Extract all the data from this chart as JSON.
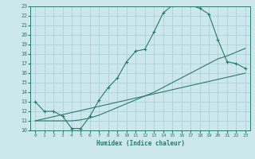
{
  "xlabel": "Humidex (Indice chaleur)",
  "bg_color": "#cce8ec",
  "grid_color": "#aaccd4",
  "line_color": "#2a7a6a",
  "spine_color": "#2a7a6a",
  "xlim": [
    -0.5,
    23.5
  ],
  "ylim": [
    10,
    23
  ],
  "xticks": [
    0,
    1,
    2,
    3,
    4,
    5,
    6,
    7,
    8,
    9,
    10,
    11,
    12,
    13,
    14,
    15,
    16,
    17,
    18,
    19,
    20,
    21,
    22,
    23
  ],
  "yticks": [
    10,
    11,
    12,
    13,
    14,
    15,
    16,
    17,
    18,
    19,
    20,
    21,
    22,
    23
  ],
  "curve1_x": [
    0,
    1,
    2,
    3,
    4,
    5,
    6,
    7,
    8,
    9,
    10,
    11,
    12,
    13,
    14,
    15,
    16,
    17,
    18,
    19,
    20,
    21,
    22,
    23
  ],
  "curve1_y": [
    13,
    12,
    12,
    11.5,
    10.2,
    10.2,
    11.5,
    13.2,
    14.5,
    15.5,
    17.2,
    18.3,
    18.5,
    20.3,
    22.3,
    23.1,
    23.2,
    23.1,
    22.8,
    22.2,
    19.5,
    17.2,
    17.0,
    16.5
  ],
  "curve2_x": [
    0,
    1,
    2,
    3,
    4,
    5,
    6,
    7,
    8,
    9,
    10,
    11,
    12,
    13,
    14,
    15,
    16,
    17,
    18,
    19,
    20,
    21,
    22,
    23
  ],
  "curve2_y": [
    11.0,
    11.0,
    11.0,
    11.0,
    11.0,
    11.1,
    11.3,
    11.6,
    12.0,
    12.4,
    12.8,
    13.2,
    13.6,
    14.0,
    14.5,
    15.0,
    15.5,
    16.0,
    16.5,
    17.0,
    17.5,
    17.8,
    18.2,
    18.6
  ],
  "curve3_x": [
    0,
    23
  ],
  "curve3_y": [
    11.0,
    16.0
  ]
}
